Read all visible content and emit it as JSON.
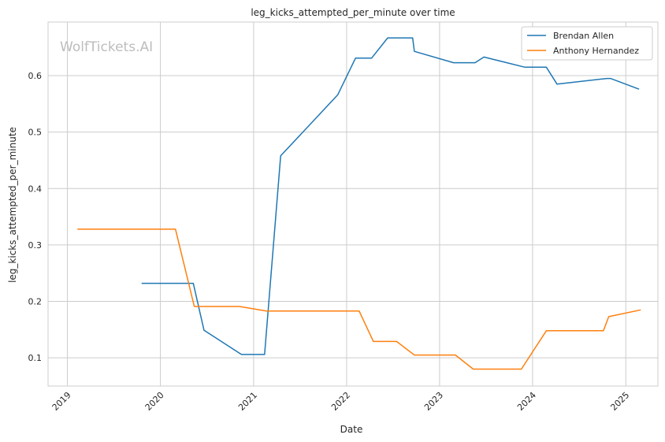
{
  "chart_data": {
    "type": "line",
    "title": "leg_kicks_attempted_per_minute over time",
    "xlabel": "Date",
    "ylabel": "leg_kicks_attempted_per_minute",
    "watermark": "WolfTickets.AI",
    "x_axis": {
      "scale": "time",
      "range": [
        "2018-10-17",
        "2025-05-07"
      ],
      "ticks": [
        "2019",
        "2020",
        "2021",
        "2022",
        "2023",
        "2024",
        "2025"
      ],
      "tick_dates": [
        "2019-01-01",
        "2020-01-01",
        "2021-01-01",
        "2022-01-01",
        "2023-01-01",
        "2024-01-01",
        "2025-01-01"
      ]
    },
    "y_axis": {
      "range": [
        0.05,
        0.695
      ],
      "ticks": [
        0.1,
        0.2,
        0.3,
        0.4,
        0.5,
        0.6
      ]
    },
    "grid": true,
    "legend": {
      "position": "top-right",
      "entries": [
        "Brendan Allen",
        "Anthony Hernandez"
      ]
    },
    "series": [
      {
        "name": "Brendan Allen",
        "color": "#1f77b4",
        "points": [
          [
            "2019-10-19",
            0.232
          ],
          [
            "2020-05-09",
            0.232
          ],
          [
            "2020-06-20",
            0.149
          ],
          [
            "2020-11-14",
            0.106
          ],
          [
            "2021-02-13",
            0.106
          ],
          [
            "2021-04-17",
            0.458
          ],
          [
            "2021-11-27",
            0.566
          ],
          [
            "2022-02-05",
            0.631
          ],
          [
            "2022-04-09",
            0.631
          ],
          [
            "2022-06-11",
            0.667
          ],
          [
            "2022-09-17",
            0.667
          ],
          [
            "2022-09-24",
            0.643
          ],
          [
            "2023-02-25",
            0.623
          ],
          [
            "2023-05-20",
            0.623
          ],
          [
            "2023-06-24",
            0.633
          ],
          [
            "2023-12-02",
            0.615
          ],
          [
            "2024-02-24",
            0.615
          ],
          [
            "2024-04-06",
            0.585
          ],
          [
            "2024-10-19",
            0.595
          ],
          [
            "2024-11-02",
            0.595
          ],
          [
            "2025-02-22",
            0.576
          ]
        ]
      },
      {
        "name": "Anthony Hernandez",
        "color": "#ff7f0e",
        "points": [
          [
            "2019-02-09",
            0.328
          ],
          [
            "2020-02-29",
            0.328
          ],
          [
            "2020-05-13",
            0.191
          ],
          [
            "2020-11-07",
            0.191
          ],
          [
            "2021-02-20",
            0.183
          ],
          [
            "2022-02-19",
            0.183
          ],
          [
            "2022-04-16",
            0.129
          ],
          [
            "2022-07-16",
            0.129
          ],
          [
            "2022-09-24",
            0.105
          ],
          [
            "2023-03-04",
            0.105
          ],
          [
            "2023-05-13",
            0.08
          ],
          [
            "2023-11-18",
            0.08
          ],
          [
            "2024-02-24",
            0.148
          ],
          [
            "2024-10-05",
            0.148
          ],
          [
            "2024-10-26",
            0.173
          ],
          [
            "2025-03-01",
            0.185
          ]
        ]
      }
    ]
  }
}
